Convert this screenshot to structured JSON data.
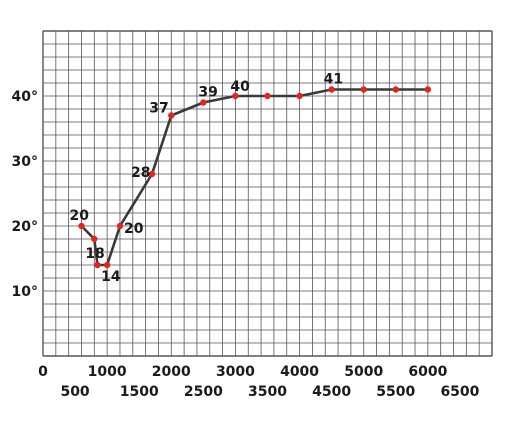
{
  "chart_data": {
    "type": "line",
    "title": "",
    "xlabel": "",
    "ylabel": "",
    "xlim": [
      0,
      7000
    ],
    "ylim": [
      0,
      50
    ],
    "grid": true,
    "x_ticks": [
      {
        "value": 0,
        "label": "0"
      },
      {
        "value": 500,
        "label": "500"
      },
      {
        "value": 1000,
        "label": "1000"
      },
      {
        "value": 1500,
        "label": "1500"
      },
      {
        "value": 2000,
        "label": "2000"
      },
      {
        "value": 2500,
        "label": "2500"
      },
      {
        "value": 3000,
        "label": "3000"
      },
      {
        "value": 3500,
        "label": "3500"
      },
      {
        "value": 4000,
        "label": "4000"
      },
      {
        "value": 4500,
        "label": "4500"
      },
      {
        "value": 5000,
        "label": "5000"
      },
      {
        "value": 5500,
        "label": "5500"
      },
      {
        "value": 6000,
        "label": "6000"
      },
      {
        "value": 6500,
        "label": "6500"
      }
    ],
    "y_ticks": [
      {
        "value": 10,
        "label": "10°"
      },
      {
        "value": 20,
        "label": "20°"
      },
      {
        "value": 30,
        "label": "30°"
      },
      {
        "value": 40,
        "label": "40°"
      }
    ],
    "series": [
      {
        "color": "#e8231e",
        "line_color": "#3a3a3a",
        "points": [
          {
            "x": 600,
            "y": 20,
            "label": "20"
          },
          {
            "x": 800,
            "y": 18,
            "label": "18"
          },
          {
            "x": 850,
            "y": 14,
            "label": ""
          },
          {
            "x": 1000,
            "y": 14,
            "label": "14"
          },
          {
            "x": 1200,
            "y": 20,
            "label": "20"
          },
          {
            "x": 1700,
            "y": 28,
            "label": "28"
          },
          {
            "x": 2000,
            "y": 37,
            "label": "37"
          },
          {
            "x": 2500,
            "y": 39,
            "label": "39"
          },
          {
            "x": 3000,
            "y": 40,
            "label": "40"
          },
          {
            "x": 3500,
            "y": 40,
            "label": ""
          },
          {
            "x": 4000,
            "y": 40,
            "label": ""
          },
          {
            "x": 4500,
            "y": 41,
            "label": "41"
          },
          {
            "x": 5000,
            "y": 41,
            "label": ""
          },
          {
            "x": 5500,
            "y": 41,
            "label": ""
          },
          {
            "x": 6000,
            "y": 41,
            "label": ""
          }
        ]
      }
    ]
  }
}
